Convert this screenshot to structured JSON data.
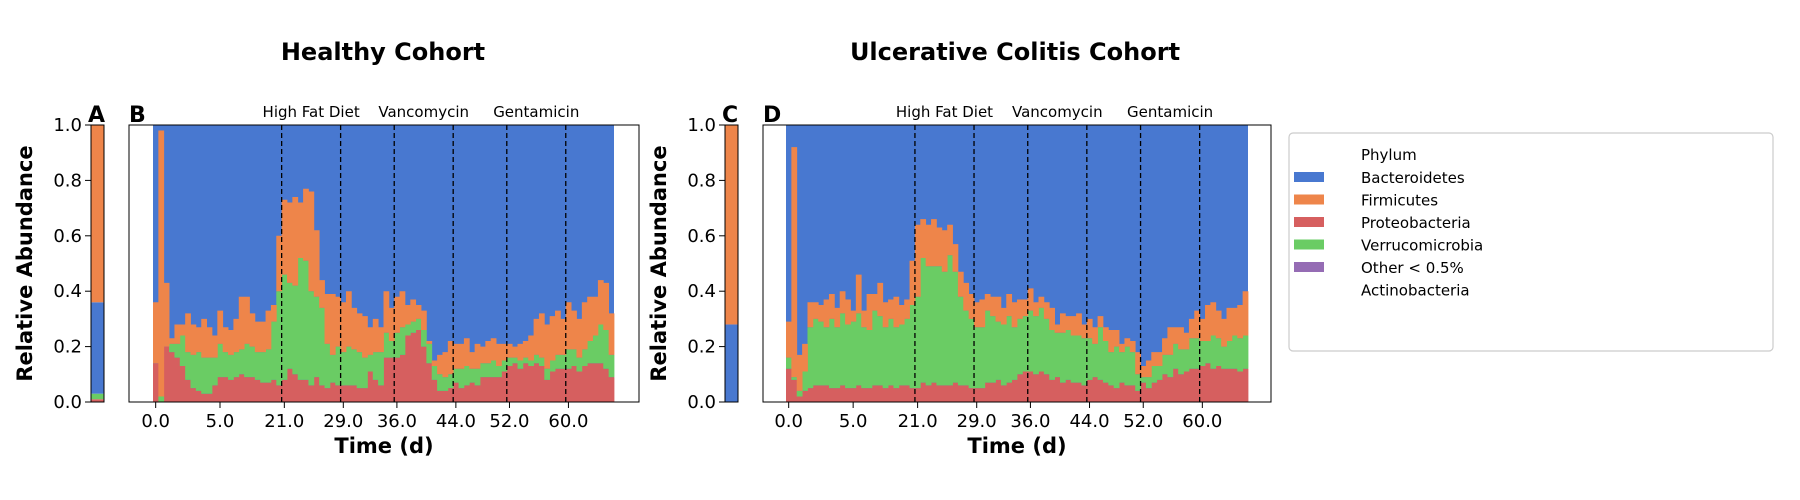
{
  "colors": {
    "Bacteroidetes": "#4878d0",
    "Firmicutes": "#ee854a",
    "Proteobacteria": "#d65f5f",
    "Verrucomicrobia": "#6acc64",
    "Other < 0.5%": "#956cb4",
    "Actinobacteria": "#8c613c"
  },
  "legend": {
    "title": "Phylum",
    "entries": [
      {
        "label": "Bacteroidetes",
        "color": "#4878d0"
      },
      {
        "label": "Firmicutes",
        "color": "#ee854a"
      },
      {
        "label": "Proteobacteria",
        "color": "#d65f5f"
      },
      {
        "label": "Verrucomicrobia",
        "color": "#6acc64"
      },
      {
        "label": "Other < 0.5%",
        "color": "#956cb4"
      },
      {
        "label": "Actinobacteria",
        "color": ""
      }
    ]
  },
  "chart_data": [
    {
      "panel": "A",
      "type": "bar",
      "stacked": true,
      "categories": [
        ""
      ],
      "series": [
        {
          "name": "Proteobacteria",
          "values": [
            0.01
          ]
        },
        {
          "name": "Verrucomicrobia",
          "values": [
            0.02
          ]
        },
        {
          "name": "Bacteroidetes",
          "values": [
            0.33
          ]
        },
        {
          "name": "Firmicutes",
          "values": [
            0.64
          ]
        }
      ],
      "ylabel": "Relative Abundance",
      "ylim": [
        0,
        1
      ],
      "yticks": [
        "0.0",
        "0.2",
        "0.4",
        "0.6",
        "0.8",
        "1.0"
      ]
    },
    {
      "panel": "B",
      "title": "Healthy Cohort",
      "type": "area",
      "stacked": true,
      "xlabel": "Time (d)",
      "xticks": [
        "0.0",
        "5.0",
        "21.0",
        "29.0",
        "36.0",
        "44.0",
        "52.0",
        "60.0"
      ],
      "ylim": [
        0,
        1
      ],
      "perturbation_lines": [
        21,
        29,
        36,
        44,
        52,
        60
      ],
      "annotations": [
        "High Fat Diet",
        "Vancomycin",
        "Gentamicin"
      ],
      "series_order": [
        "Proteobacteria",
        "Verrucomicrobia",
        "Firmicutes",
        "Bacteroidetes"
      ],
      "series": [
        {
          "name": "Proteobacteria",
          "values": [
            0.14,
            0.0,
            0.2,
            0.18,
            0.16,
            0.13,
            0.08,
            0.05,
            0.04,
            0.03,
            0.03,
            0.06,
            0.09,
            0.09,
            0.08,
            0.09,
            0.1,
            0.09,
            0.09,
            0.08,
            0.07,
            0.07,
            0.08,
            0.06,
            0.08,
            0.12,
            0.1,
            0.08,
            0.08,
            0.06,
            0.09,
            0.06,
            0.05,
            0.07,
            0.06,
            0.06,
            0.06,
            0.06,
            0.05,
            0.05,
            0.11,
            0.08,
            0.06,
            0.16,
            0.16,
            0.16,
            0.17,
            0.24,
            0.25,
            0.26,
            0.2,
            0.14,
            0.08,
            0.04,
            0.04,
            0.05,
            0.07,
            0.05,
            0.06,
            0.07,
            0.06,
            0.09,
            0.09,
            0.09,
            0.09,
            0.11,
            0.13,
            0.14,
            0.12,
            0.14,
            0.13,
            0.14,
            0.13,
            0.08,
            0.11,
            0.12,
            0.12,
            0.12,
            0.13,
            0.11,
            0.13,
            0.14,
            0.14,
            0.14,
            0.12,
            0.09
          ]
        },
        {
          "name": "Verrucomicrobia",
          "values": [
            0.0,
            0.02,
            0.0,
            0.03,
            0.05,
            0.11,
            0.1,
            0.12,
            0.14,
            0.13,
            0.13,
            0.1,
            0.12,
            0.09,
            0.09,
            0.09,
            0.09,
            0.12,
            0.11,
            0.1,
            0.11,
            0.12,
            0.21,
            0.34,
            0.38,
            0.31,
            0.32,
            0.44,
            0.43,
            0.34,
            0.29,
            0.28,
            0.16,
            0.1,
            0.14,
            0.12,
            0.14,
            0.13,
            0.13,
            0.11,
            0.06,
            0.1,
            0.12,
            0.09,
            0.06,
            0.09,
            0.1,
            0.04,
            0.04,
            0.04,
            0.06,
            0.07,
            0.05,
            0.06,
            0.05,
            0.05,
            0.05,
            0.07,
            0.07,
            0.05,
            0.06,
            0.05,
            0.05,
            0.06,
            0.04,
            0.04,
            0.03,
            0.02,
            0.03,
            0.02,
            0.02,
            0.03,
            0.03,
            0.04,
            0.04,
            0.05,
            0.05,
            0.07,
            0.06,
            0.05,
            0.06,
            0.08,
            0.1,
            0.14,
            0.14,
            0.08
          ]
        },
        {
          "name": "Firmicutes",
          "values": [
            0.22,
            0.96,
            0.23,
            0.02,
            0.07,
            0.04,
            0.14,
            0.11,
            0.09,
            0.14,
            0.11,
            0.08,
            0.12,
            0.09,
            0.09,
            0.12,
            0.19,
            0.17,
            0.12,
            0.11,
            0.11,
            0.14,
            0.06,
            0.2,
            0.27,
            0.29,
            0.32,
            0.2,
            0.26,
            0.36,
            0.24,
            0.1,
            0.18,
            0.22,
            0.18,
            0.18,
            0.2,
            0.15,
            0.14,
            0.15,
            0.1,
            0.12,
            0.09,
            0.15,
            0.12,
            0.13,
            0.13,
            0.07,
            0.08,
            0.05,
            0.07,
            0.01,
            0.02,
            0.07,
            0.09,
            0.12,
            0.09,
            0.09,
            0.1,
            0.06,
            0.09,
            0.06,
            0.08,
            0.08,
            0.08,
            0.06,
            0.05,
            0.04,
            0.06,
            0.06,
            0.09,
            0.13,
            0.16,
            0.16,
            0.16,
            0.16,
            0.13,
            0.17,
            0.14,
            0.14,
            0.17,
            0.16,
            0.14,
            0.16,
            0.17,
            0.15
          ]
        }
      ]
    },
    {
      "panel": "C",
      "type": "bar",
      "stacked": true,
      "categories": [
        ""
      ],
      "series": [
        {
          "name": "Proteobacteria",
          "values": [
            0.0
          ]
        },
        {
          "name": "Verrucomicrobia",
          "values": [
            0.0
          ]
        },
        {
          "name": "Bacteroidetes",
          "values": [
            0.28
          ]
        },
        {
          "name": "Firmicutes",
          "values": [
            0.72
          ]
        }
      ],
      "ylabel": "Relative Abundance",
      "ylim": [
        0,
        1
      ],
      "yticks": [
        "0.0",
        "0.2",
        "0.4",
        "0.6",
        "0.8",
        "1.0"
      ]
    },
    {
      "panel": "D",
      "title": "Ulcerative Colitis Cohort",
      "type": "area",
      "stacked": true,
      "xlabel": "Time (d)",
      "xticks": [
        "0.0",
        "5.0",
        "21.0",
        "29.0",
        "36.0",
        "44.0",
        "52.0",
        "60.0"
      ],
      "ylim": [
        0,
        1
      ],
      "perturbation_lines": [
        21,
        29,
        36,
        44,
        52,
        60
      ],
      "annotations": [
        "High Fat Diet",
        "Vancomycin",
        "Gentamicin"
      ],
      "series_order": [
        "Proteobacteria",
        "Verrucomicrobia",
        "Firmicutes",
        "Bacteroidetes"
      ],
      "series": [
        {
          "name": "Proteobacteria",
          "values": [
            0.12,
            0.08,
            0.02,
            0.04,
            0.05,
            0.06,
            0.06,
            0.06,
            0.05,
            0.05,
            0.06,
            0.05,
            0.05,
            0.06,
            0.05,
            0.05,
            0.06,
            0.06,
            0.05,
            0.06,
            0.05,
            0.06,
            0.06,
            0.05,
            0.05,
            0.07,
            0.06,
            0.07,
            0.06,
            0.06,
            0.06,
            0.07,
            0.06,
            0.06,
            0.05,
            0.05,
            0.05,
            0.07,
            0.07,
            0.08,
            0.06,
            0.07,
            0.08,
            0.1,
            0.11,
            0.11,
            0.1,
            0.11,
            0.1,
            0.08,
            0.09,
            0.07,
            0.08,
            0.07,
            0.07,
            0.06,
            0.08,
            0.09,
            0.08,
            0.07,
            0.06,
            0.05,
            0.07,
            0.06,
            0.06,
            0.04,
            0.07,
            0.05,
            0.07,
            0.08,
            0.1,
            0.09,
            0.12,
            0.1,
            0.11,
            0.12,
            0.12,
            0.13,
            0.14,
            0.12,
            0.13,
            0.12,
            0.12,
            0.12,
            0.11,
            0.12
          ]
        },
        {
          "name": "Verrucomicrobia",
          "values": [
            0.04,
            0.01,
            0.02,
            0.07,
            0.22,
            0.24,
            0.23,
            0.21,
            0.25,
            0.22,
            0.26,
            0.23,
            0.24,
            0.26,
            0.22,
            0.21,
            0.27,
            0.25,
            0.22,
            0.24,
            0.22,
            0.22,
            0.24,
            0.3,
            0.33,
            0.45,
            0.43,
            0.42,
            0.43,
            0.41,
            0.47,
            0.4,
            0.32,
            0.27,
            0.25,
            0.22,
            0.22,
            0.26,
            0.24,
            0.21,
            0.22,
            0.24,
            0.19,
            0.2,
            0.2,
            0.22,
            0.21,
            0.23,
            0.2,
            0.18,
            0.16,
            0.18,
            0.18,
            0.17,
            0.17,
            0.17,
            0.15,
            0.12,
            0.19,
            0.15,
            0.12,
            0.15,
            0.11,
            0.14,
            0.12,
            0.06,
            0.02,
            0.04,
            0.06,
            0.05,
            0.07,
            0.08,
            0.09,
            0.09,
            0.08,
            0.11,
            0.11,
            0.09,
            0.08,
            0.12,
            0.1,
            0.08,
            0.1,
            0.12,
            0.12,
            0.12
          ]
        },
        {
          "name": "Firmicutes",
          "values": [
            0.13,
            0.83,
            0.13,
            0.1,
            0.09,
            0.06,
            0.06,
            0.1,
            0.09,
            0.07,
            0.08,
            0.09,
            0.04,
            0.14,
            0.06,
            0.13,
            0.06,
            0.12,
            0.09,
            0.07,
            0.11,
            0.07,
            0.07,
            0.16,
            0.26,
            0.14,
            0.15,
            0.17,
            0.14,
            0.15,
            0.11,
            0.1,
            0.09,
            0.1,
            0.09,
            0.09,
            0.1,
            0.06,
            0.07,
            0.09,
            0.06,
            0.08,
            0.09,
            0.07,
            0.06,
            0.08,
            0.05,
            0.04,
            0.06,
            0.08,
            0.03,
            0.07,
            0.05,
            0.07,
            0.08,
            0.05,
            0.07,
            0.06,
            0.04,
            0.05,
            0.08,
            0.06,
            0.03,
            0.03,
            0.04,
            0.08,
            0.04,
            0.06,
            0.05,
            0.05,
            0.06,
            0.1,
            0.06,
            0.08,
            0.06,
            0.07,
            0.1,
            0.08,
            0.13,
            0.12,
            0.1,
            0.1,
            0.12,
            0.1,
            0.12,
            0.16
          ]
        }
      ]
    }
  ]
}
